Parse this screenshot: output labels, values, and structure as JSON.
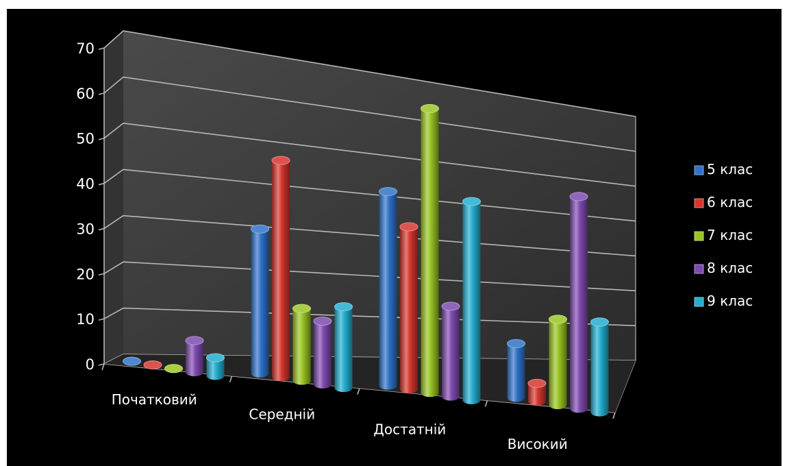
{
  "chart_data": {
    "type": "bar",
    "style": "3d-cylinder",
    "title": "",
    "xlabel": "",
    "ylabel": "",
    "categories": [
      "Початковий",
      "Середній",
      "Достатній",
      "Високий"
    ],
    "series": [
      {
        "name": "5 клас",
        "color": "#2f73c9",
        "values": [
          0,
          32,
          43,
          12
        ]
      },
      {
        "name": "6 клас",
        "color": "#d5372f",
        "values": [
          0,
          48,
          36,
          4
        ]
      },
      {
        "name": "7 клас",
        "color": "#9ac423",
        "values": [
          0,
          16,
          63,
          19
        ]
      },
      {
        "name": "8 клас",
        "color": "#7f4ab0",
        "values": [
          7,
          14,
          20,
          47
        ]
      },
      {
        "name": "9 клас",
        "color": "#23aecf",
        "values": [
          4,
          18,
          44,
          20
        ]
      }
    ],
    "ylim": [
      0,
      70
    ],
    "yticks": [
      "0",
      "10",
      "20",
      "30",
      "40",
      "50",
      "60",
      "70"
    ],
    "grid": true,
    "legend": "right",
    "background": "#000000",
    "gridline_color": "#b8b8b8",
    "wall_color": "#3d3d3d"
  }
}
